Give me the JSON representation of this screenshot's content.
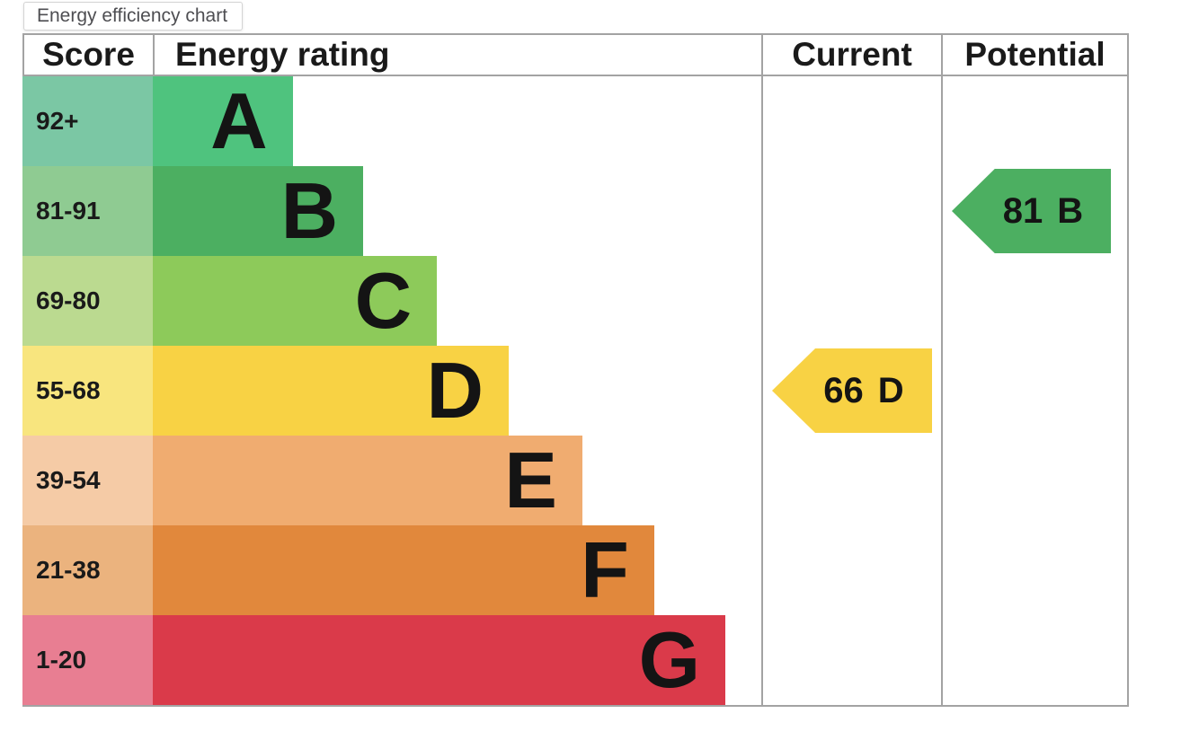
{
  "title_tab": {
    "label": "Energy efficiency chart"
  },
  "chart_data": {
    "type": "bar",
    "title": "Energy efficiency chart",
    "columns": {
      "score": "Score",
      "rating": "Energy rating",
      "current": "Current",
      "potential": "Potential"
    },
    "bands": [
      {
        "score_range": "92+",
        "letter": "A",
        "bar_width": "23%",
        "bar_color": "#4fc37e",
        "score_cell_color": "#7bc7a4"
      },
      {
        "score_range": "81-91",
        "letter": "B",
        "bar_width": "34.6%",
        "bar_color": "#4caf61",
        "score_cell_color": "#8fcb92"
      },
      {
        "score_range": "69-80",
        "letter": "C",
        "bar_width": "46.7%",
        "bar_color": "#8dca5a",
        "score_cell_color": "#bbda90"
      },
      {
        "score_range": "55-68",
        "letter": "D",
        "bar_width": "58.5%",
        "bar_color": "#f8d244",
        "score_cell_color": "#f8e57e"
      },
      {
        "score_range": "39-54",
        "letter": "E",
        "bar_width": "70.6%",
        "bar_color": "#f0ac70",
        "score_cell_color": "#f5cba6"
      },
      {
        "score_range": "21-38",
        "letter": "F",
        "bar_width": "82.4%",
        "bar_color": "#e1883c",
        "score_cell_color": "#ebb37e"
      },
      {
        "score_range": "1-20",
        "letter": "G",
        "bar_width": "94.1%",
        "bar_color": "#da3a4a",
        "score_cell_color": "#e87e92"
      }
    ],
    "current": {
      "value": "66",
      "band": "D",
      "color": "#f8d244"
    },
    "potential": {
      "value": "81",
      "band": "B",
      "color": "#4caf61"
    }
  }
}
